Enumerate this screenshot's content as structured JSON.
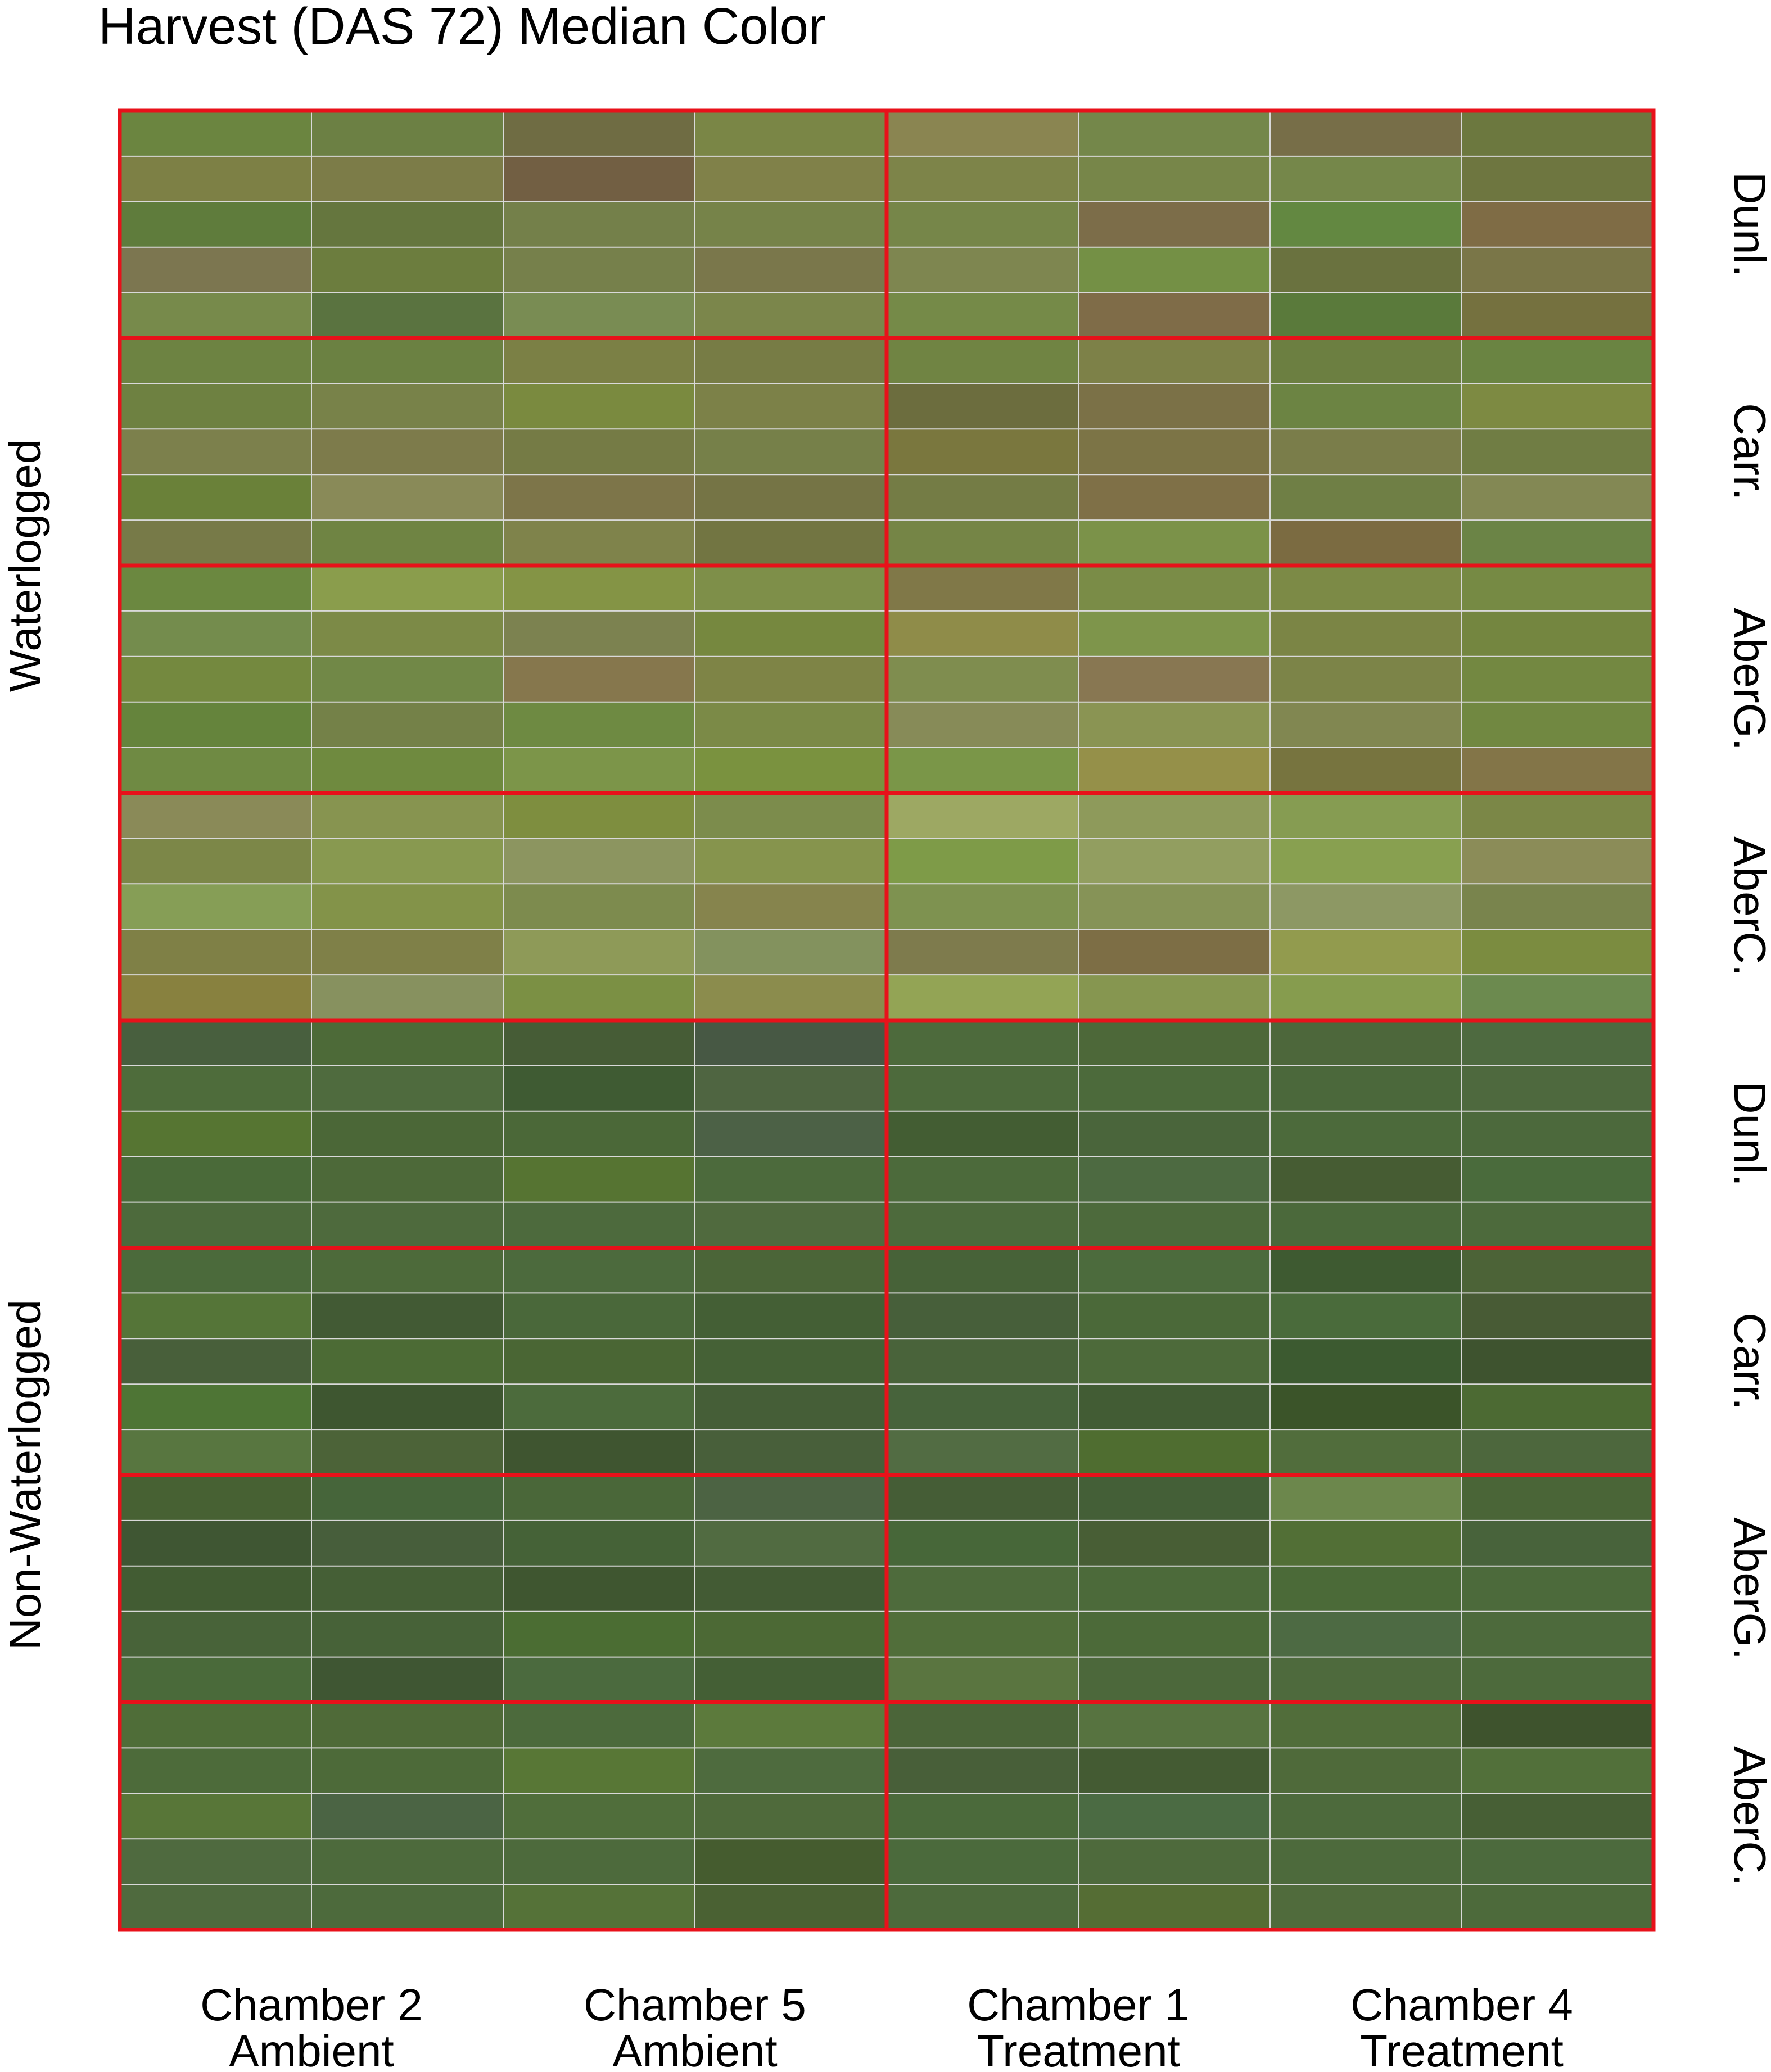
{
  "chart_data": {
    "type": "heatmap",
    "title": "Harvest (DAS 72) Median Color",
    "columns": [
      {
        "line1": "Chamber 2",
        "line2": "Ambient"
      },
      {
        "line1": "Chamber 5",
        "line2": "Ambient"
      },
      {
        "line1": "Chamber 1",
        "line2": "Treatment"
      },
      {
        "line1": "Chamber 4",
        "line2": "Treatment"
      }
    ],
    "row_groups": [
      {
        "label": "Waterlogged",
        "varieties": [
          "Dunl.",
          "Carr.",
          "AberG.",
          "AberC."
        ]
      },
      {
        "label": "Non-Waterlogged",
        "varieties": [
          "Dunl.",
          "Carr.",
          "AberG.",
          "AberC."
        ]
      }
    ],
    "grid_lines_color": "#d9d9d9",
    "block_border_color": "#e8111a",
    "cells": [
      [
        [
          "#6b8540",
          "#6c8044",
          "#6f6c43",
          "#7a8646",
          "#8a8551",
          "#74874a",
          "#776e48",
          "#6c783f"
        ],
        [
          "#7d8045",
          "#7c7c48",
          "#725f43",
          "#808149",
          "#7d8449",
          "#778649",
          "#75874a",
          "#6e7640"
        ],
        [
          "#5f7c3c",
          "#65763e",
          "#74804a",
          "#768349",
          "#768649",
          "#7c6d49",
          "#638841",
          "#7f6c45"
        ],
        [
          "#7c7650",
          "#6c7d3e",
          "#76804b",
          "#7a774b",
          "#7e8650",
          "#749045",
          "#6a723f",
          "#7a7648"
        ],
        [
          "#778a4b",
          "#5a7340",
          "#798c53",
          "#7b864b",
          "#758a48",
          "#7f6c48",
          "#5a7a3b",
          "#75713f"
        ]
      ],
      [
        [
          "#6d8342",
          "#6b8142",
          "#7b8045",
          "#777c45",
          "#708443",
          "#7d8148",
          "#6c7f41",
          "#6a8442"
        ],
        [
          "#6e8141",
          "#788249",
          "#7a8a3f",
          "#7c8148",
          "#6c6d3e",
          "#7b7147",
          "#6c8443",
          "#7d8a42"
        ],
        [
          "#7c804c",
          "#7d7b4b",
          "#757b45",
          "#768049",
          "#7a773e",
          "#7c7446",
          "#7a7d4a",
          "#707d44"
        ],
        [
          "#6a8139",
          "#898a58",
          "#7d7549",
          "#757445",
          "#747c45",
          "#7f7047",
          "#6f7f45",
          "#838854"
        ],
        [
          "#777a48",
          "#6f8443",
          "#7f834b",
          "#727542",
          "#758546",
          "#7b9249",
          "#7b6b41",
          "#6b8446"
        ]
      ],
      [
        [
          "#6b8840",
          "#8a9d4c",
          "#849445",
          "#7e8f49",
          "#807848",
          "#7a8c47",
          "#7c8a46",
          "#768a44"
        ],
        [
          "#748c4d",
          "#7c8a47",
          "#7c8250",
          "#76883f",
          "#8f8c49",
          "#7e954b",
          "#7b8545",
          "#748640"
        ],
        [
          "#74893f",
          "#718847",
          "#86774d",
          "#7e8446",
          "#7f8d4f",
          "#887752",
          "#7c8448",
          "#738841"
        ],
        [
          "#65843c",
          "#748148",
          "#6e8a42",
          "#7b8a47",
          "#878b58",
          "#8a9453",
          "#818751",
          "#718841"
        ],
        [
          "#6f8a43",
          "#6f8a3f",
          "#7c9549",
          "#7a923f",
          "#7a9648",
          "#959049",
          "#77743f",
          "#837548"
        ]
      ],
      [
        [
          "#8a8a58",
          "#879450",
          "#7e8e3f",
          "#7c8c4c",
          "#9da863",
          "#8e9a5b",
          "#869c52",
          "#7b8747"
        ],
        [
          "#7c8748",
          "#889950",
          "#8c9560",
          "#86944d",
          "#7e9b48",
          "#929e60",
          "#88a050",
          "#8b8c58"
        ],
        [
          "#869e56",
          "#839349",
          "#7d8b4e",
          "#86844d",
          "#7e9250",
          "#869357",
          "#8d9864",
          "#79844d"
        ],
        [
          "#7f8046",
          "#7f8048",
          "#8e9a58",
          "#83925e",
          "#7e7b4d",
          "#7d6e45",
          "#929b4e",
          "#7b8c40"
        ],
        [
          "#88813f",
          "#87915f",
          "#7b9044",
          "#8b8c4d",
          "#93a455",
          "#869650",
          "#869c4e",
          "#6c8a4f"
        ]
      ]
    ],
    "cells_nonwaterlogged": [
      [
        [
          "#485f3e",
          "#4d6a38",
          "#465c36",
          "#475844",
          "#4d6a3c",
          "#4d6839",
          "#4d673b",
          "#4e6a40"
        ],
        [
          "#4e6c3b",
          "#4f6b3e",
          "#3f5b33",
          "#4f6541",
          "#4d6a3c",
          "#4c6a3b",
          "#4b683b",
          "#4e693e"
        ],
        [
          "#567532",
          "#4b6737",
          "#4b6838",
          "#4c6146",
          "#435d33",
          "#4a653b",
          "#4c6a3b",
          "#4c693c"
        ],
        [
          "#4a6a39",
          "#4d6939",
          "#567432",
          "#4c6a3c",
          "#4c6a3b",
          "#4d6a41",
          "#465c33",
          "#4a6b3c"
        ],
        [
          "#4d6a3c",
          "#4e6a3d",
          "#4d6a3d",
          "#506a3e",
          "#4d6a3c",
          "#4d6a3c",
          "#4b693b",
          "#4d6a3c"
        ]
      ],
      [
        [
          "#4b6a3b",
          "#4d6a3a",
          "#4c6a3d",
          "#4b6538",
          "#476238",
          "#4c6b3d",
          "#3e5a31",
          "#4c6337"
        ],
        [
          "#557538",
          "#425a34",
          "#4a683a",
          "#445f35",
          "#475f3a",
          "#4b6939",
          "#4a6b3b",
          "#485b35"
        ],
        [
          "#485f3a",
          "#4c6b35",
          "#4a6634",
          "#456136",
          "#49633a",
          "#4d6a3a",
          "#3c5a30",
          "#3e532f"
        ],
        [
          "#4e7535",
          "#3e5630",
          "#4c6b3c",
          "#455e37",
          "#47633b",
          "#425c34",
          "#3b5429",
          "#4c6a33"
        ],
        [
          "#587640",
          "#4c6338",
          "#3f5530",
          "#485f3a",
          "#526c43",
          "#4f6d30",
          "#516d3c",
          "#4d673d"
        ]
      ],
      [
        [
          "#476133",
          "#46653a",
          "#4a6739",
          "#4c6343",
          "#455d36",
          "#445f37",
          "#6c874c",
          "#4a6537"
        ],
        [
          "#3f5633",
          "#475e3b",
          "#456237",
          "#516b41",
          "#476739",
          "#485e35",
          "#526f36",
          "#48633b"
        ],
        [
          "#425c33",
          "#455f36",
          "#3f5630",
          "#435b34",
          "#4e6b3c",
          "#4c6a3a",
          "#4b6a38",
          "#4c6a3b"
        ],
        [
          "#486339",
          "#476238",
          "#4b6d33",
          "#4c6935",
          "#516e3a",
          "#4c6a39",
          "#4d6a43",
          "#4d6a3c"
        ],
        [
          "#4a6a3a",
          "#3f5633",
          "#4b6a3e",
          "#445f35",
          "#5a7540",
          "#4c683b",
          "#4e6a3d",
          "#4d6a3c"
        ]
      ],
      [
        [
          "#4f6d38",
          "#4f6a38",
          "#4c6a3c",
          "#5c7a3c",
          "#4b6539",
          "#577340",
          "#516d3a",
          "#3e532d"
        ],
        [
          "#4d6b3a",
          "#4d6a39",
          "#587736",
          "#4e6b3e",
          "#485f39",
          "#445b33",
          "#4f6a3a",
          "#52703a"
        ],
        [
          "#587638",
          "#4b6444",
          "#506e3b",
          "#4f6a3b",
          "#4b6a3b",
          "#4b6b43",
          "#4d6a3c",
          "#475f35"
        ],
        [
          "#4f6a3f",
          "#4d6a3c",
          "#4d6a3c",
          "#455c2f",
          "#4b6a3c",
          "#4e6a3c",
          "#4d6a3c",
          "#4c6a3d"
        ],
        [
          "#4f6a3e",
          "#4d6a3c",
          "#557238",
          "#4a6133",
          "#4d6a3c",
          "#556d34",
          "#506b3c",
          "#4d6a3b"
        ]
      ]
    ]
  }
}
